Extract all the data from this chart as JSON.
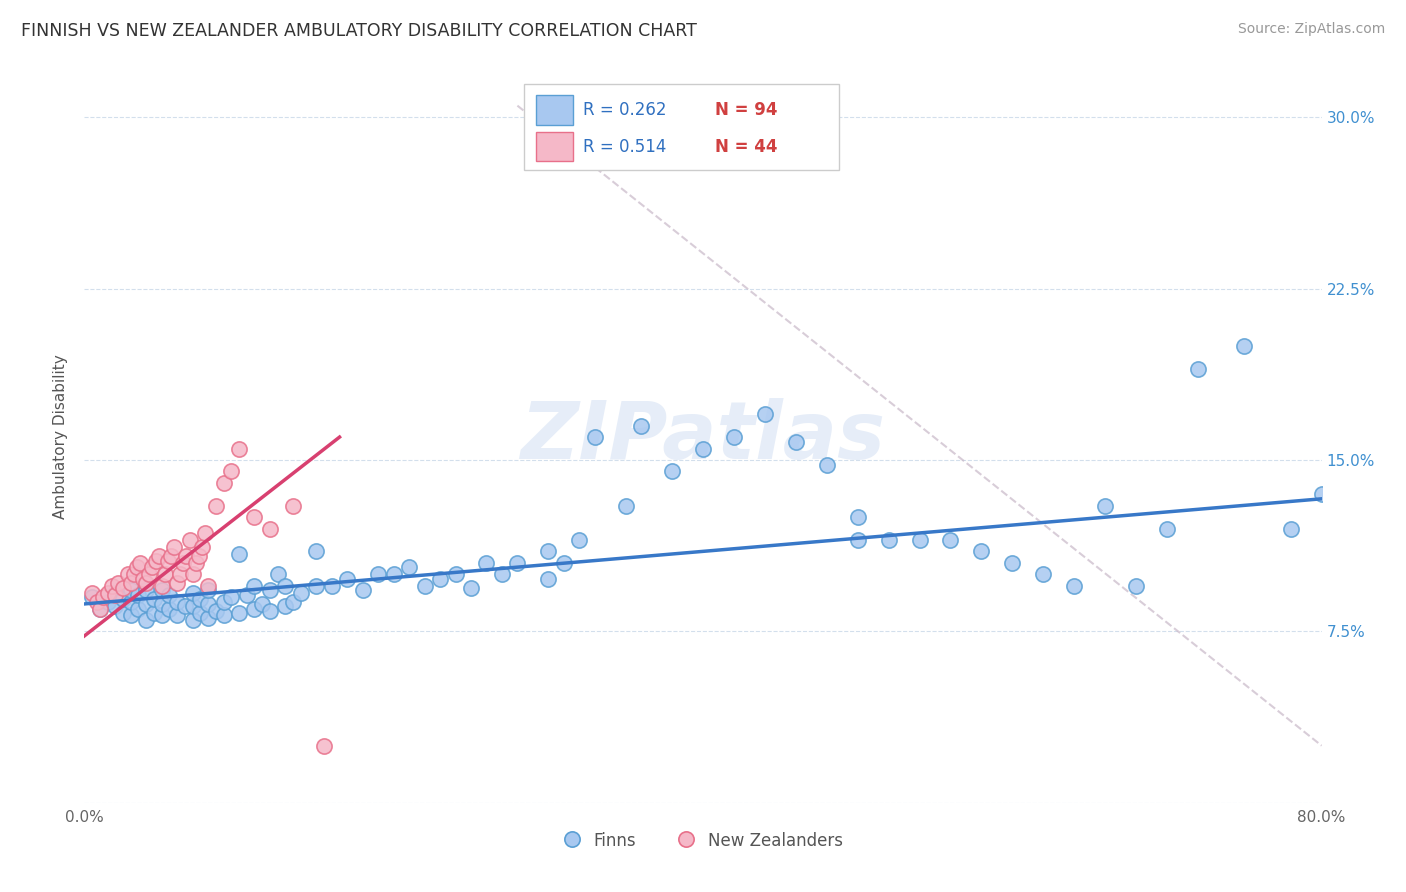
{
  "title": "FINNISH VS NEW ZEALANDER AMBULATORY DISABILITY CORRELATION CHART",
  "source": "Source: ZipAtlas.com",
  "ylabel": "Ambulatory Disability",
  "watermark": "ZIPatlas",
  "legend_label1": "Finns",
  "legend_label2": "New Zealanders",
  "color_finn": "#a8c8f0",
  "color_nz": "#f5b8c8",
  "color_finn_border": "#5a9fd4",
  "color_nz_border": "#e8708a",
  "trend_line_color_finn": "#3878c8",
  "trend_line_color_nz": "#d84070",
  "ref_line_color": "#c8b8c8",
  "background_color": "#ffffff",
  "grid_color": "#c8d8e8",
  "legend_r_color": "#3070c0",
  "legend_n_color": "#d04040",
  "xmin": 0.0,
  "xmax": 0.8,
  "ymin": 0.0,
  "ymax": 0.32,
  "finn_scatter_x": [
    0.005,
    0.01,
    0.015,
    0.02,
    0.02,
    0.025,
    0.025,
    0.03,
    0.03,
    0.03,
    0.035,
    0.035,
    0.04,
    0.04,
    0.04,
    0.045,
    0.045,
    0.05,
    0.05,
    0.05,
    0.055,
    0.055,
    0.06,
    0.06,
    0.065,
    0.07,
    0.07,
    0.07,
    0.075,
    0.075,
    0.08,
    0.08,
    0.08,
    0.085,
    0.09,
    0.09,
    0.095,
    0.1,
    0.1,
    0.105,
    0.11,
    0.11,
    0.115,
    0.12,
    0.12,
    0.125,
    0.13,
    0.13,
    0.135,
    0.14,
    0.15,
    0.15,
    0.16,
    0.17,
    0.18,
    0.19,
    0.2,
    0.21,
    0.22,
    0.23,
    0.24,
    0.25,
    0.26,
    0.27,
    0.28,
    0.3,
    0.3,
    0.31,
    0.32,
    0.33,
    0.35,
    0.36,
    0.38,
    0.4,
    0.42,
    0.44,
    0.46,
    0.48,
    0.5,
    0.5,
    0.52,
    0.54,
    0.56,
    0.58,
    0.6,
    0.62,
    0.64,
    0.66,
    0.68,
    0.7,
    0.72,
    0.75,
    0.78,
    0.8
  ],
  "finn_scatter_y": [
    0.09,
    0.085,
    0.088,
    0.086,
    0.092,
    0.083,
    0.089,
    0.082,
    0.088,
    0.093,
    0.085,
    0.091,
    0.08,
    0.087,
    0.093,
    0.083,
    0.089,
    0.082,
    0.087,
    0.093,
    0.085,
    0.091,
    0.082,
    0.088,
    0.086,
    0.08,
    0.086,
    0.092,
    0.083,
    0.089,
    0.081,
    0.087,
    0.093,
    0.084,
    0.082,
    0.088,
    0.09,
    0.083,
    0.109,
    0.091,
    0.085,
    0.095,
    0.087,
    0.084,
    0.093,
    0.1,
    0.086,
    0.095,
    0.088,
    0.092,
    0.095,
    0.11,
    0.095,
    0.098,
    0.093,
    0.1,
    0.1,
    0.103,
    0.095,
    0.098,
    0.1,
    0.094,
    0.105,
    0.1,
    0.105,
    0.098,
    0.11,
    0.105,
    0.115,
    0.16,
    0.13,
    0.165,
    0.145,
    0.155,
    0.16,
    0.17,
    0.158,
    0.148,
    0.115,
    0.125,
    0.115,
    0.115,
    0.115,
    0.11,
    0.105,
    0.1,
    0.095,
    0.13,
    0.095,
    0.12,
    0.19,
    0.2,
    0.12,
    0.135
  ],
  "nz_scatter_x": [
    0.005,
    0.008,
    0.01,
    0.012,
    0.015,
    0.018,
    0.02,
    0.022,
    0.025,
    0.028,
    0.03,
    0.032,
    0.034,
    0.036,
    0.038,
    0.04,
    0.042,
    0.044,
    0.046,
    0.048,
    0.05,
    0.052,
    0.054,
    0.056,
    0.058,
    0.06,
    0.062,
    0.064,
    0.066,
    0.068,
    0.07,
    0.072,
    0.074,
    0.076,
    0.078,
    0.08,
    0.085,
    0.09,
    0.095,
    0.1,
    0.11,
    0.12,
    0.135,
    0.155
  ],
  "nz_scatter_y": [
    0.092,
    0.088,
    0.085,
    0.09,
    0.092,
    0.095,
    0.091,
    0.096,
    0.094,
    0.1,
    0.096,
    0.1,
    0.103,
    0.105,
    0.098,
    0.096,
    0.1,
    0.103,
    0.106,
    0.108,
    0.095,
    0.1,
    0.106,
    0.108,
    0.112,
    0.096,
    0.1,
    0.105,
    0.108,
    0.115,
    0.1,
    0.105,
    0.108,
    0.112,
    0.118,
    0.095,
    0.13,
    0.14,
    0.145,
    0.155,
    0.125,
    0.12,
    0.13,
    0.025
  ],
  "finn_trend_x": [
    0.0,
    0.8
  ],
  "finn_trend_y": [
    0.087,
    0.133
  ],
  "nz_trend_x": [
    0.0,
    0.165
  ],
  "nz_trend_y": [
    0.073,
    0.16
  ],
  "ref_line_x": [
    0.28,
    0.8
  ],
  "ref_line_y": [
    0.305,
    0.025
  ]
}
